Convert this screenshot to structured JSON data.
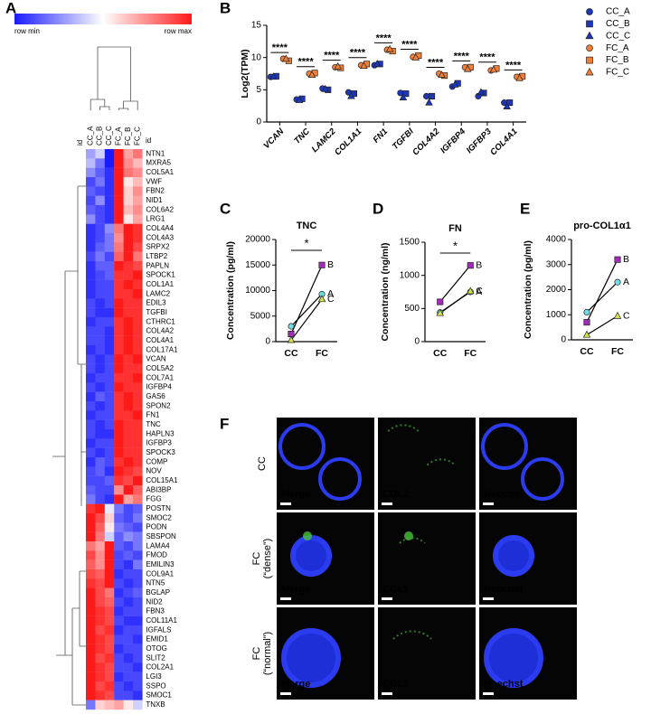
{
  "chart_data": [
    {
      "type": "heatmap",
      "panel_label": "A",
      "vmin_label": "row min",
      "vmax_label": "row max",
      "id_label": "id",
      "zlim": [
        -1,
        1
      ],
      "colorscale": [
        "#1a1aff",
        "#ffffff",
        "#ff1a1a"
      ],
      "columns": [
        "CC_A",
        "CC_B",
        "CC_C",
        "FC_A",
        "FC_B",
        "FC_C"
      ],
      "rows": [
        "NTN1",
        "MXRA5",
        "COL5A1",
        "VWF",
        "FBN2",
        "NID1",
        "COL6A2",
        "LRG1",
        "COL4A4",
        "COL4A3",
        "SRPX2",
        "LTBP2",
        "PAPLN",
        "SPOCK1",
        "COL1A1",
        "LAMC2",
        "EDIL3",
        "TGFBI",
        "CTHRC1",
        "COL4A2",
        "COL4A1",
        "COL17A1",
        "VCAN",
        "COL5A2",
        "COL7A1",
        "IGFBP4",
        "GAS6",
        "SPON2",
        "FN1",
        "TNC",
        "HAPLN3",
        "IGFBP3",
        "SPOCK3",
        "COMP",
        "NOV",
        "COL15A1",
        "ABI3BP",
        "FGG",
        "POSTN",
        "SMOC2",
        "PODN",
        "SBSPON",
        "LAMA4",
        "FMOD",
        "EMILIN3",
        "COL9A1",
        "NTN5",
        "BGLAP",
        "NID2",
        "FBN3",
        "COL11A1",
        "IGFALS",
        "EMID1",
        "OTOG",
        "SLIT2",
        "COL2A1",
        "LGI3",
        "SSPO",
        "SMOC1",
        "TNXB"
      ],
      "values": [
        [
          -0.4,
          -0.2,
          -1,
          1,
          0.4,
          0.6
        ],
        [
          -0.3,
          -0.6,
          -1,
          1,
          0.5,
          0.3
        ],
        [
          -0.5,
          -0.7,
          -0.9,
          1,
          0.6,
          0.5
        ],
        [
          -0.8,
          -0.6,
          -0.9,
          1,
          0.1,
          0.3
        ],
        [
          -0.7,
          -0.8,
          -0.9,
          1,
          0.2,
          0.5
        ],
        [
          -0.8,
          -0.5,
          -0.9,
          1,
          0.2,
          0.4
        ],
        [
          -0.7,
          -0.8,
          -0.9,
          1,
          0.3,
          0.5
        ],
        [
          -0.5,
          -0.8,
          -0.9,
          1,
          0.1,
          0.4
        ],
        [
          -0.9,
          -0.8,
          -0.5,
          0.6,
          1,
          0.9
        ],
        [
          -0.9,
          -0.8,
          -0.6,
          0.5,
          1,
          0.9
        ],
        [
          -0.9,
          -0.7,
          -0.6,
          0.6,
          1,
          0.8
        ],
        [
          -0.8,
          -0.6,
          -0.8,
          0.7,
          1,
          0.6
        ],
        [
          -0.9,
          -0.7,
          -0.7,
          1,
          0.9,
          0.8
        ],
        [
          -0.9,
          -0.8,
          -0.7,
          0.9,
          0.9,
          1
        ],
        [
          -0.9,
          -0.8,
          -0.8,
          0.9,
          1,
          0.9
        ],
        [
          -0.9,
          -0.8,
          -0.8,
          0.9,
          0.9,
          1
        ],
        [
          -0.8,
          -0.9,
          -0.8,
          1,
          0.9,
          0.9
        ],
        [
          -0.8,
          -0.9,
          -0.9,
          1,
          0.9,
          0.9
        ],
        [
          -0.9,
          -0.8,
          -0.8,
          0.9,
          1,
          0.9
        ],
        [
          -0.8,
          -0.8,
          -0.9,
          0.9,
          1,
          0.9
        ],
        [
          -0.8,
          -0.8,
          -0.9,
          0.9,
          1,
          0.9
        ],
        [
          -0.9,
          -0.8,
          -0.9,
          0.9,
          1,
          0.9
        ],
        [
          -0.8,
          -0.9,
          -0.8,
          1,
          0.9,
          1
        ],
        [
          -0.8,
          -0.9,
          -0.8,
          1,
          0.9,
          0.9
        ],
        [
          -0.9,
          -0.8,
          -0.8,
          0.9,
          0.9,
          1
        ],
        [
          -0.8,
          -0.9,
          -0.8,
          1,
          0.9,
          0.9
        ],
        [
          -0.9,
          -0.7,
          -0.8,
          0.9,
          1,
          0.9
        ],
        [
          -0.8,
          -0.9,
          -0.8,
          0.9,
          1,
          0.9
        ],
        [
          -0.9,
          -0.8,
          -0.8,
          0.9,
          0.9,
          1
        ],
        [
          -0.8,
          -0.9,
          -0.8,
          1,
          0.9,
          0.9
        ],
        [
          -0.8,
          -0.9,
          -0.9,
          1,
          0.9,
          0.9
        ],
        [
          -0.9,
          -0.8,
          -0.8,
          1,
          0.9,
          0.9
        ],
        [
          -0.8,
          -0.9,
          -0.8,
          1,
          0.9,
          0.9
        ],
        [
          -0.9,
          -0.7,
          -0.8,
          0.9,
          1,
          0.9
        ],
        [
          -0.8,
          -0.7,
          -0.9,
          1,
          0.9,
          0.8
        ],
        [
          -0.8,
          -0.8,
          -0.7,
          0.9,
          0.8,
          1
        ],
        [
          -0.7,
          -0.8,
          -0.8,
          0.5,
          1,
          0.7
        ],
        [
          -0.6,
          -0.8,
          -0.9,
          1,
          0.4,
          0.6
        ],
        [
          0.9,
          1,
          -0.1,
          -0.6,
          -0.8,
          -0.7
        ],
        [
          1,
          0.8,
          0.2,
          -0.7,
          -0.8,
          -0.6
        ],
        [
          1,
          0.7,
          0.1,
          -0.6,
          -0.7,
          -0.8
        ],
        [
          1,
          0.6,
          -0.2,
          -0.7,
          -0.5,
          -0.6
        ],
        [
          0.6,
          0.4,
          1,
          -0.7,
          -0.8,
          -0.6
        ],
        [
          0.8,
          0.5,
          1,
          -0.8,
          -0.7,
          -0.8
        ],
        [
          0.7,
          0.5,
          1,
          -0.8,
          -0.9,
          -0.6
        ],
        [
          0.8,
          0.7,
          1,
          -0.9,
          -0.8,
          -0.8
        ],
        [
          0.9,
          0.8,
          1,
          -0.8,
          -0.9,
          -0.8
        ],
        [
          1,
          0.8,
          0.6,
          -0.9,
          -0.8,
          -0.7
        ],
        [
          1,
          0.8,
          0.7,
          -0.8,
          -0.9,
          -0.8
        ],
        [
          1,
          0.9,
          0.8,
          -0.9,
          -0.8,
          -0.8
        ],
        [
          1,
          0.9,
          0.8,
          -0.8,
          -0.9,
          -0.9
        ],
        [
          1,
          0.8,
          0.9,
          -0.9,
          -0.8,
          -0.8
        ],
        [
          1,
          0.9,
          0.8,
          -0.8,
          -0.8,
          -0.9
        ],
        [
          1,
          0.9,
          0.8,
          -0.9,
          -0.8,
          -0.8
        ],
        [
          1,
          0.8,
          0.9,
          -0.8,
          -0.9,
          -0.8
        ],
        [
          1,
          0.9,
          0.8,
          -0.8,
          -0.8,
          -0.9
        ],
        [
          1,
          0.9,
          0.8,
          -0.9,
          -0.8,
          -0.8
        ],
        [
          1,
          0.8,
          0.9,
          -0.8,
          -0.9,
          -0.8
        ],
        [
          1,
          0.9,
          0.8,
          -0.8,
          -0.8,
          -0.9
        ],
        [
          -0.6,
          0.2,
          0.3,
          0.4,
          0.1,
          -0.2
        ]
      ]
    },
    {
      "type": "scatter",
      "panel_label": "B",
      "y_label": "Log2(TPM)",
      "categories": [
        "VCAN",
        "TNC",
        "LAMC2",
        "COL1A1",
        "FN1",
        "TGFBI",
        "COL4A2",
        "IGFBP4",
        "IGFBP3",
        "COL4A1"
      ],
      "annotations": [
        "****",
        "****",
        "****",
        "****",
        "****",
        "****",
        "****",
        "****",
        "****",
        "****"
      ],
      "ylim": [
        0,
        15
      ],
      "yticks": [
        0,
        5,
        10,
        15
      ],
      "series": [
        {
          "name": "CC_A",
          "color": "#1c37b8",
          "marker": "circle",
          "values": [
            7.0,
            3.5,
            5.2,
            4.6,
            8.8,
            4.5,
            4.0,
            5.5,
            4.0,
            3.0
          ]
        },
        {
          "name": "CC_B",
          "color": "#1c37b8",
          "marker": "square",
          "values": [
            7.1,
            3.6,
            5.0,
            4.4,
            9.0,
            4.4,
            4.0,
            6.0,
            4.5,
            3.0
          ]
        },
        {
          "name": "CC_C",
          "color": "#1c37b8",
          "marker": "triangle",
          "values": [
            7.0,
            3.4,
            5.1,
            4.0,
            9.0,
            3.8,
            3.0,
            5.8,
            4.6,
            2.4
          ]
        },
        {
          "name": "FC_A",
          "color": "#f08038",
          "marker": "circle",
          "values": [
            9.8,
            7.5,
            8.5,
            8.8,
            11.2,
            10.1,
            7.5,
            8.5,
            8.0,
            7.0
          ]
        },
        {
          "name": "FC_B",
          "color": "#f08038",
          "marker": "square",
          "values": [
            9.5,
            7.6,
            8.4,
            9.0,
            11.0,
            10.3,
            7.2,
            8.5,
            8.3,
            7.1
          ]
        },
        {
          "name": "FC_C",
          "color": "#f08038",
          "marker": "triangle",
          "values": [
            9.8,
            7.3,
            8.6,
            8.7,
            11.3,
            10.0,
            7.3,
            8.2,
            8.1,
            6.8
          ]
        }
      ]
    },
    {
      "type": "line",
      "panel_label": "C",
      "title": "TNC",
      "y_label": "Concentration (pg/ml)",
      "annotation": "*",
      "categories": [
        "CC",
        "FC"
      ],
      "ylim": [
        0,
        20000
      ],
      "yticks": [
        0,
        5000,
        10000,
        15000,
        20000
      ],
      "series": [
        {
          "name": "A",
          "color": "#6fdde6",
          "marker": "circle",
          "values": [
            3000,
            9300
          ]
        },
        {
          "name": "B",
          "color": "#a22cb8",
          "marker": "square",
          "values": [
            1500,
            15000
          ]
        },
        {
          "name": "C",
          "color": "#d5e34a",
          "marker": "triangle",
          "values": [
            300,
            8300
          ]
        }
      ]
    },
    {
      "type": "line",
      "panel_label": "D",
      "title": "FN",
      "y_label": "Concentration (ng/ml)",
      "annotation": "*",
      "categories": [
        "CC",
        "FC"
      ],
      "ylim": [
        0,
        1500
      ],
      "yticks": [
        0,
        500,
        1000,
        1500
      ],
      "series": [
        {
          "name": "A",
          "color": "#6fdde6",
          "marker": "circle",
          "values": [
            440,
            750
          ]
        },
        {
          "name": "B",
          "color": "#a22cb8",
          "marker": "square",
          "values": [
            600,
            1150
          ]
        },
        {
          "name": "C",
          "color": "#d5e34a",
          "marker": "triangle",
          "values": [
            430,
            760
          ]
        }
      ]
    },
    {
      "type": "line",
      "panel_label": "E",
      "title": "pro-COL1α1",
      "y_label": "Concentration (pg/ml)",
      "categories": [
        "CC",
        "FC"
      ],
      "ylim": [
        0,
        4000
      ],
      "yticks": [
        0,
        1000,
        2000,
        3000,
        4000
      ],
      "series": [
        {
          "name": "A",
          "color": "#6fdde6",
          "marker": "circle",
          "values": [
            1100,
            2300
          ]
        },
        {
          "name": "B",
          "color": "#a22cb8",
          "marker": "square",
          "values": [
            700,
            3200
          ]
        },
        {
          "name": "C",
          "color": "#d5e34a",
          "marker": "triangle",
          "values": [
            200,
            950
          ]
        }
      ]
    }
  ],
  "panel_f": {
    "panel_label": "F",
    "rows": [
      [
        "CC"
      ],
      [
        "FC",
        "(“dense”)"
      ],
      [
        "FC",
        "(“normal”)"
      ]
    ],
    "channels": [
      "Merge",
      "COL1",
      "Hoechst"
    ],
    "channel_colors": [
      "#ffffff",
      "#7de05a",
      "#29a8e0"
    ]
  }
}
